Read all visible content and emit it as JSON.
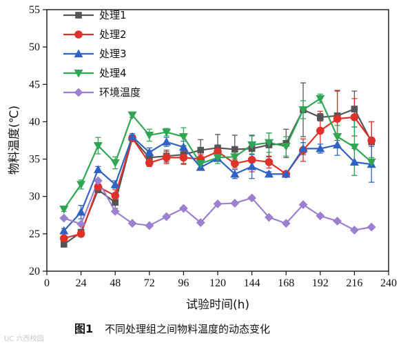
{
  "chart_data": {
    "type": "line",
    "xlabel": "试验时间(h)",
    "ylabel": "物料温度(℃)",
    "xlim": [
      0,
      240
    ],
    "ylim": [
      20,
      55
    ],
    "xticks": [
      0,
      24,
      48,
      72,
      96,
      120,
      144,
      168,
      192,
      216,
      240
    ],
    "yticks": [
      20,
      25,
      30,
      35,
      40,
      45,
      50,
      55
    ],
    "grid": false,
    "legend_position": "top-left",
    "x": [
      12,
      24,
      36,
      48,
      60,
      72,
      84,
      96,
      108,
      120,
      132,
      144,
      156,
      168,
      180,
      192,
      204,
      216,
      228
    ],
    "series": [
      {
        "name": "处理1",
        "color": "#555555",
        "marker": "square",
        "values": [
          23.6,
          25.2,
          30.9,
          29.2,
          37.8,
          35.2,
          35.4,
          35.6,
          36.2,
          36.5,
          36.3,
          36.4,
          36.9,
          37.1,
          41.6,
          40.6,
          40.8,
          41.7,
          37.3
        ],
        "errors": [
          0.3,
          0.4,
          0.4,
          0.8,
          0.4,
          0.8,
          0.8,
          1.2,
          1.4,
          1.8,
          1.9,
          1.8,
          1.6,
          1.9,
          3.6,
          0.5,
          3.3,
          2.4,
          2.7
        ]
      },
      {
        "name": "处理2",
        "color": "#e0302a",
        "marker": "circle",
        "values": [
          24.4,
          25.0,
          31.3,
          30.1,
          37.8,
          34.5,
          35.2,
          35.2,
          35.0,
          36.0,
          34.4,
          34.9,
          34.6,
          33.0,
          36.2,
          38.8,
          40.4,
          40.6,
          37.5
        ],
        "errors": [
          0.3,
          0.4,
          0.3,
          0.8,
          0.4,
          0.5,
          0.8,
          0.9,
          0.6,
          0.7,
          0.6,
          1.6,
          0.8,
          0.3,
          1.5,
          2.6,
          3.8,
          2.5,
          2.5
        ]
      },
      {
        "name": "处理3",
        "color": "#2f62c4",
        "marker": "triangle-up",
        "values": [
          25.4,
          27.9,
          33.6,
          31.6,
          38.0,
          35.9,
          37.3,
          36.6,
          33.9,
          35.1,
          33.0,
          34.0,
          33.0,
          33.0,
          36.4,
          36.4,
          36.9,
          34.6,
          34.3
        ],
        "errors": [
          0.3,
          0.9,
          0.4,
          0.5,
          0.4,
          0.6,
          0.6,
          0.8,
          0.3,
          0.4,
          0.6,
          1.6,
          0.3,
          0.3,
          0.8,
          0.6,
          1.4,
          1.8,
          2.4
        ]
      },
      {
        "name": "处理4",
        "color": "#2fa653",
        "marker": "triangle-down",
        "values": [
          28.3,
          31.6,
          36.8,
          34.5,
          40.9,
          38.2,
          38.6,
          38.0,
          34.4,
          35.2,
          35.3,
          36.9,
          37.2,
          36.7,
          41.6,
          43.1,
          38.0,
          36.6,
          34.6
        ],
        "errors": [
          0.3,
          0.6,
          1.1,
          0.8,
          0.3,
          0.8,
          0.5,
          1.2,
          0.6,
          0.8,
          0.8,
          1.2,
          1.3,
          1.3,
          1.2,
          0.6,
          1.5,
          3.8,
          0.6
        ]
      },
      {
        "name": "环境温度",
        "color": "#9b7fd0",
        "marker": "diamond",
        "values": [
          27.1,
          26.3,
          32.1,
          28.0,
          26.4,
          26.1,
          27.3,
          28.4,
          26.5,
          29.0,
          29.1,
          29.8,
          27.2,
          26.4,
          28.9,
          27.4,
          26.7,
          25.5,
          25.9
        ],
        "errors": []
      }
    ]
  },
  "caption": {
    "label": "图1",
    "text": "不同处理组之间物料温度的动态变化"
  },
  "watermark": "UC 六西校园"
}
